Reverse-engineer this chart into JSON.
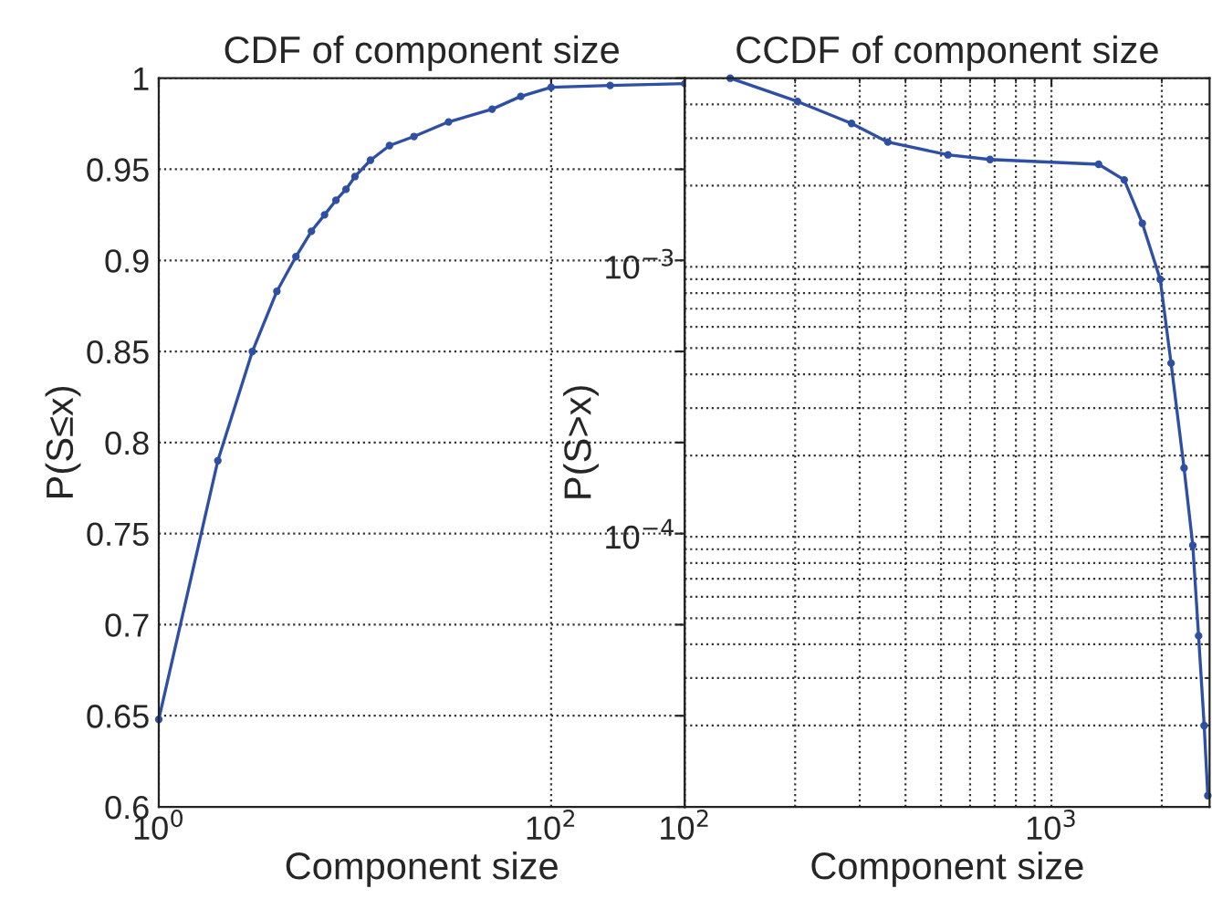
{
  "chart_data": [
    {
      "type": "line",
      "title": "CDF of component size",
      "xlabel": "Component size",
      "ylabel": "P(S≤x)",
      "log": "x",
      "grid": true,
      "marker": "circle",
      "line_style": "solid",
      "series": [
        {
          "color": "#2e4fa3",
          "x": [
            1,
            2,
            3,
            4,
            5,
            6,
            7,
            8,
            9,
            10,
            12,
            15,
            20,
            30,
            50,
            70,
            100,
            200,
            480
          ],
          "values": [
            0.648,
            0.79,
            0.85,
            0.883,
            0.902,
            0.916,
            0.925,
            0.933,
            0.939,
            0.946,
            0.955,
            0.963,
            0.968,
            0.976,
            0.983,
            0.99,
            0.995,
            0.996,
            0.997
          ]
        }
      ],
      "xlim": [
        1,
        480
      ],
      "ylim": [
        0.6,
        1
      ],
      "xticks": [
        {
          "value": 1,
          "label": "10$^{0}$"
        },
        {
          "value": 100,
          "label": "10$^{2}$"
        }
      ],
      "yticks": [
        0.6,
        0.65,
        0.7,
        0.75,
        0.8,
        0.85,
        0.9,
        0.95,
        1
      ]
    },
    {
      "type": "line",
      "title": "CCDF of component size",
      "xlabel": "Component size",
      "ylabel": "P(S>x)",
      "log": "xy",
      "grid": true,
      "marker": "circle",
      "line_style": "solid",
      "series": [
        {
          "color": "#2e4fa3",
          "x": [
            133,
            203,
            285,
            358,
            522,
            680,
            1345,
            1580,
            1770,
            1980,
            2120,
            2300,
            2430,
            2520,
            2610,
            2670
          ],
          "values": [
            0.005,
            0.0041,
            0.0034,
            0.0029,
            0.0026,
            0.0025,
            0.0024,
            0.0021,
            0.00145,
            0.0009,
            0.00044,
            0.00018,
            9.3e-05,
            4.3e-05,
            2e-05,
            1.1e-05
          ]
        }
      ],
      "xlim": [
        100,
        2700
      ],
      "ylim": [
        1e-05,
        0.005
      ],
      "xticks": [
        {
          "value": 100,
          "label": "10$^{2}$"
        },
        {
          "value": 1000,
          "label": "10$^{3}$"
        }
      ],
      "yticks": [
        {
          "value": 0.0001,
          "label": "10$^{−4}$"
        },
        {
          "value": 0.001,
          "label": "10$^{−3}$"
        }
      ]
    }
  ]
}
